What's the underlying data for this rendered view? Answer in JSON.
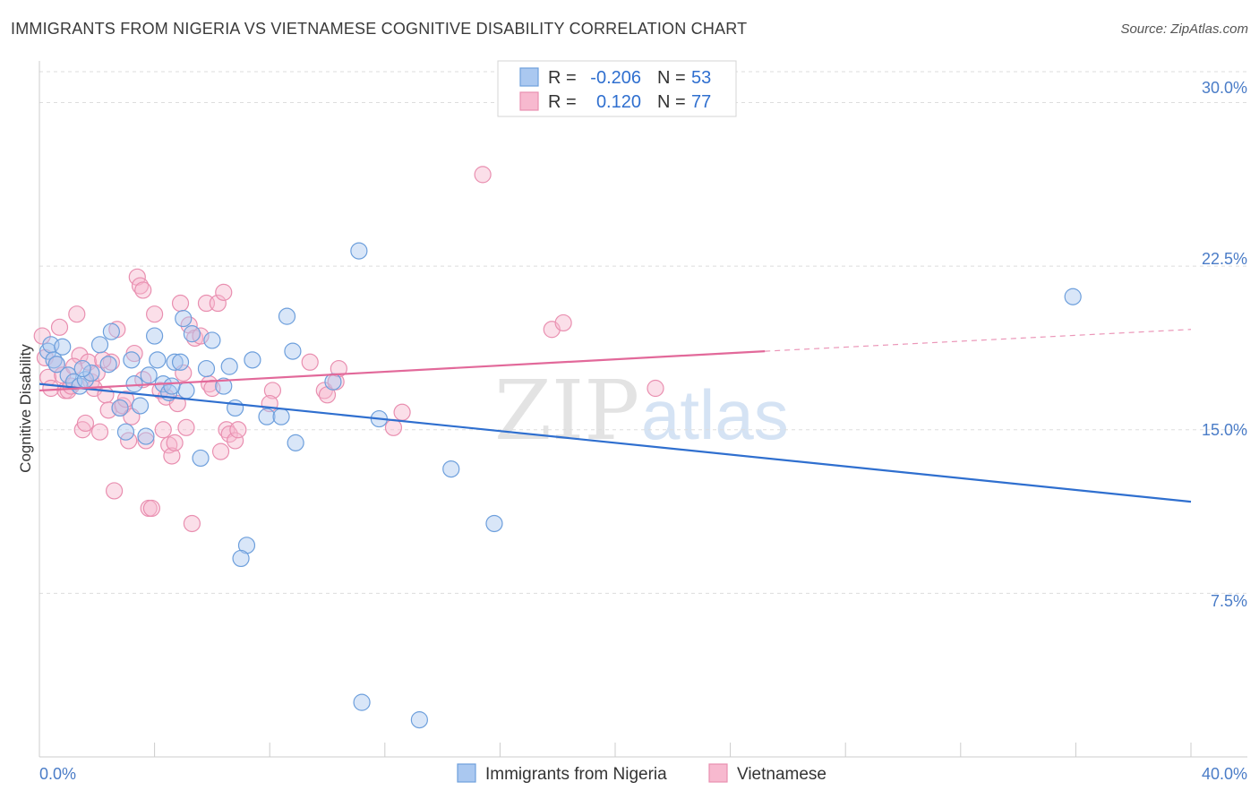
{
  "header": {
    "title": "IMMIGRANTS FROM NIGERIA VS VIETNAMESE COGNITIVE DISABILITY CORRELATION CHART",
    "source": "Source: ZipAtlas.com"
  },
  "watermark": {
    "zip": "ZIP",
    "atlas": "atlas"
  },
  "colors": {
    "blue_fill": "#aac8f0",
    "blue_stroke": "#6d9fdc",
    "blue_line": "#2f6fcf",
    "pink_fill": "#f7b9cf",
    "pink_stroke": "#e98fb0",
    "pink_line": "#e2699a",
    "tick_text": "#4a7cc7",
    "stat_value": "#2f6fcf"
  },
  "stats": [
    {
      "r_label": "R =",
      "r_value": "-0.206",
      "n_label": "N =",
      "n_value": "53",
      "series": "blue"
    },
    {
      "r_label": "R =",
      "r_value": "0.120",
      "n_label": "N =",
      "n_value": "77",
      "series": "pink"
    }
  ],
  "chart_data": {
    "type": "scatter",
    "title": "IMMIGRANTS FROM NIGERIA VS VIETNAMESE COGNITIVE DISABILITY CORRELATION CHART",
    "xlabel": "",
    "ylabel": "Cognitive Disability",
    "xlim": [
      0,
      40
    ],
    "ylim": [
      0,
      31.5
    ],
    "x_tick_labels": [
      "0.0%",
      "40.0%"
    ],
    "y_ticks": [
      7.5,
      15.0,
      22.5,
      30.0
    ],
    "y_tick_labels": [
      "7.5%",
      "15.0%",
      "22.5%",
      "30.0%"
    ],
    "grid": true,
    "legend_position": "bottom",
    "series": [
      {
        "name": "Immigrants from Nigeria",
        "color": "blue",
        "r": -0.206,
        "n": 53,
        "trend": {
          "x0": 0,
          "y0": 17.1,
          "x1": 40,
          "y1": 11.7,
          "dashed_to": null
        },
        "points": [
          [
            0.3,
            18.6
          ],
          [
            0.4,
            18.9
          ],
          [
            0.5,
            18.2
          ],
          [
            0.6,
            18.0
          ],
          [
            0.8,
            18.8
          ],
          [
            1.0,
            17.5
          ],
          [
            1.2,
            17.2
          ],
          [
            1.4,
            17.0
          ],
          [
            1.6,
            17.3
          ],
          [
            1.8,
            17.6
          ],
          [
            2.1,
            18.9
          ],
          [
            2.5,
            19.5
          ],
          [
            2.8,
            16.0
          ],
          [
            3.0,
            14.9
          ],
          [
            3.2,
            18.2
          ],
          [
            3.3,
            17.1
          ],
          [
            3.5,
            16.1
          ],
          [
            3.7,
            14.7
          ],
          [
            3.8,
            17.5
          ],
          [
            4.0,
            19.3
          ],
          [
            4.1,
            18.2
          ],
          [
            4.3,
            17.1
          ],
          [
            4.5,
            16.7
          ],
          [
            4.7,
            18.1
          ],
          [
            4.9,
            18.1
          ],
          [
            5.0,
            20.1
          ],
          [
            5.1,
            16.8
          ],
          [
            5.3,
            19.4
          ],
          [
            5.6,
            13.7
          ],
          [
            5.8,
            17.8
          ],
          [
            6.0,
            19.1
          ],
          [
            6.4,
            17.0
          ],
          [
            6.6,
            17.9
          ],
          [
            6.8,
            16.0
          ],
          [
            7.2,
            9.7
          ],
          [
            7.4,
            18.2
          ],
          [
            7.9,
            15.6
          ],
          [
            8.4,
            15.6
          ],
          [
            8.6,
            20.2
          ],
          [
            8.8,
            18.6
          ],
          [
            8.9,
            14.4
          ],
          [
            10.2,
            17.2
          ],
          [
            11.1,
            23.2
          ],
          [
            11.8,
            15.5
          ],
          [
            14.3,
            13.2
          ],
          [
            15.8,
            10.7
          ],
          [
            7.0,
            9.1
          ],
          [
            11.2,
            2.5
          ],
          [
            13.2,
            1.7
          ],
          [
            35.9,
            21.1
          ],
          [
            1.5,
            17.8
          ],
          [
            2.4,
            18.0
          ],
          [
            4.6,
            17.0
          ]
        ]
      },
      {
        "name": "Vietnamese",
        "color": "pink",
        "r": 0.12,
        "n": 77,
        "trend": {
          "x0": 0,
          "y0": 16.8,
          "x1": 25.2,
          "y1": 18.6,
          "dashed_to": [
            40,
            19.6
          ]
        },
        "points": [
          [
            0.1,
            19.3
          ],
          [
            0.2,
            18.3
          ],
          [
            0.3,
            17.4
          ],
          [
            0.4,
            16.9
          ],
          [
            0.6,
            18.0
          ],
          [
            0.7,
            19.7
          ],
          [
            0.8,
            17.5
          ],
          [
            0.9,
            16.8
          ],
          [
            1.0,
            16.8
          ],
          [
            1.1,
            17.0
          ],
          [
            1.3,
            20.3
          ],
          [
            1.4,
            18.4
          ],
          [
            1.5,
            15.0
          ],
          [
            1.6,
            15.3
          ],
          [
            1.7,
            18.1
          ],
          [
            1.8,
            17.2
          ],
          [
            1.9,
            16.9
          ],
          [
            2.0,
            17.6
          ],
          [
            2.1,
            14.9
          ],
          [
            2.3,
            16.6
          ],
          [
            2.4,
            15.9
          ],
          [
            2.5,
            18.1
          ],
          [
            2.6,
            12.2
          ],
          [
            2.7,
            19.6
          ],
          [
            2.8,
            16.0
          ],
          [
            2.9,
            16.1
          ],
          [
            3.0,
            16.4
          ],
          [
            3.1,
            14.5
          ],
          [
            3.2,
            15.6
          ],
          [
            3.3,
            18.5
          ],
          [
            3.4,
            22.0
          ],
          [
            3.5,
            21.6
          ],
          [
            3.6,
            21.4
          ],
          [
            3.7,
            14.5
          ],
          [
            3.8,
            11.4
          ],
          [
            3.9,
            11.4
          ],
          [
            4.0,
            20.3
          ],
          [
            4.2,
            16.8
          ],
          [
            4.3,
            15.0
          ],
          [
            4.4,
            16.5
          ],
          [
            4.5,
            14.3
          ],
          [
            4.6,
            13.8
          ],
          [
            4.7,
            14.4
          ],
          [
            4.8,
            16.2
          ],
          [
            4.9,
            20.8
          ],
          [
            5.0,
            17.6
          ],
          [
            5.1,
            15.1
          ],
          [
            5.2,
            19.8
          ],
          [
            5.3,
            10.7
          ],
          [
            5.4,
            19.2
          ],
          [
            5.6,
            19.3
          ],
          [
            5.8,
            20.8
          ],
          [
            5.9,
            17.1
          ],
          [
            6.0,
            16.9
          ],
          [
            6.2,
            20.8
          ],
          [
            6.3,
            14.0
          ],
          [
            6.4,
            21.3
          ],
          [
            6.5,
            15.0
          ],
          [
            6.6,
            14.8
          ],
          [
            6.8,
            14.5
          ],
          [
            6.9,
            15.0
          ],
          [
            8.1,
            16.8
          ],
          [
            8.0,
            16.2
          ],
          [
            9.4,
            18.1
          ],
          [
            9.9,
            16.8
          ],
          [
            10.0,
            16.6
          ],
          [
            10.3,
            17.2
          ],
          [
            10.4,
            17.8
          ],
          [
            12.3,
            15.1
          ],
          [
            12.6,
            15.8
          ],
          [
            15.4,
            26.7
          ],
          [
            17.8,
            19.6
          ],
          [
            18.2,
            19.9
          ],
          [
            21.4,
            16.9
          ],
          [
            1.2,
            17.9
          ],
          [
            2.2,
            18.2
          ],
          [
            3.6,
            17.3
          ]
        ]
      }
    ]
  }
}
